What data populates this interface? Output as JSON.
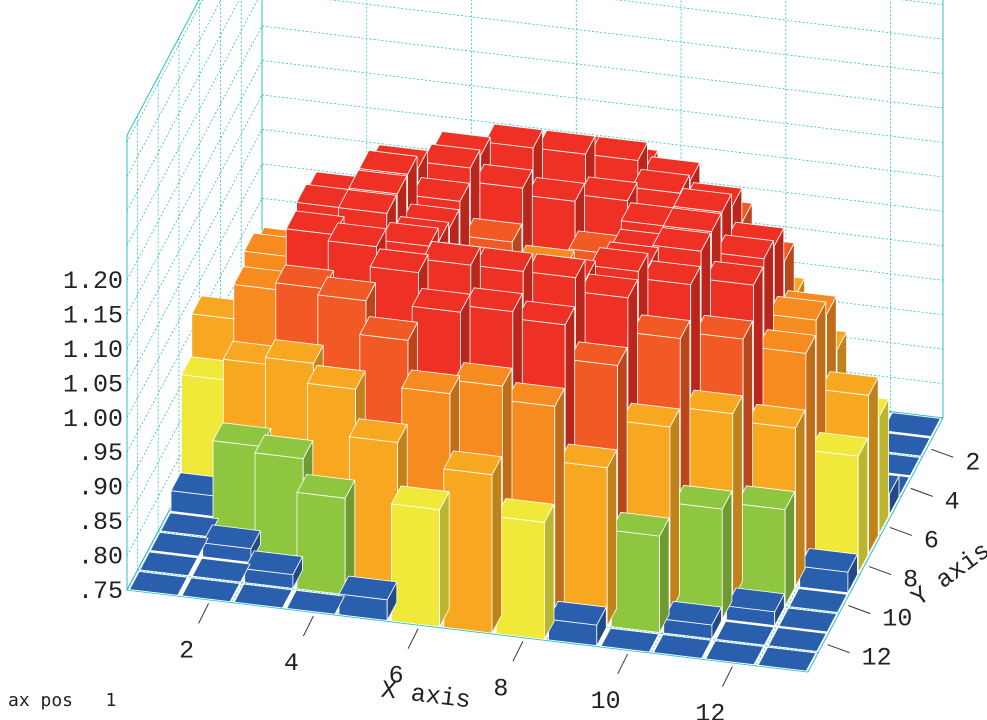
{
  "chart_data": {
    "type": "bar3d",
    "xlabel": "X axis",
    "ylabel": "Y axis",
    "x_ticks": [
      "2",
      "4",
      "6",
      "8",
      "10",
      "12"
    ],
    "y_ticks": [
      "2",
      "4",
      "6",
      "8",
      "10",
      "12"
    ],
    "z_ticks": [
      ".75",
      ".80",
      ".85",
      ".90",
      ".95",
      "1.00",
      "1.05",
      "1.10",
      "1.15",
      "1.20"
    ],
    "x_categories": [
      1,
      2,
      3,
      4,
      5,
      6,
      7,
      8,
      9,
      10,
      11,
      12,
      13
    ],
    "y_categories": [
      1,
      2,
      3,
      4,
      5,
      6,
      7,
      8,
      9,
      10,
      11,
      12,
      13
    ],
    "zlim": [
      0.75,
      1.2
    ],
    "color_scale": [
      "#2a5fad",
      "#64bc48",
      "#8ec63f",
      "#f0e93a",
      "#f7a820",
      "#f68b1f",
      "#f15a24",
      "#ee3124"
    ],
    "values": [
      [
        0.75,
        0.75,
        0.75,
        0.75,
        0.78,
        0.92,
        0.98,
        0.92,
        0.78,
        0.75,
        0.75,
        0.75,
        0.75
      ],
      [
        0.75,
        0.75,
        0.77,
        0.89,
        0.98,
        1.06,
        1.08,
        1.06,
        0.98,
        0.89,
        0.77,
        0.75,
        0.75
      ],
      [
        0.75,
        0.77,
        0.91,
        1.02,
        1.1,
        1.15,
        1.16,
        1.15,
        1.1,
        1.02,
        0.91,
        0.77,
        0.75
      ],
      [
        0.75,
        0.89,
        1.02,
        1.12,
        1.17,
        1.19,
        1.19,
        1.19,
        1.17,
        1.12,
        1.02,
        0.89,
        0.75
      ],
      [
        0.78,
        0.98,
        1.1,
        1.17,
        1.18,
        1.16,
        1.15,
        1.16,
        1.18,
        1.17,
        1.1,
        0.98,
        0.78
      ],
      [
        0.92,
        1.06,
        1.15,
        1.19,
        1.16,
        1.11,
        1.08,
        1.11,
        1.16,
        1.19,
        1.15,
        1.06,
        0.92
      ],
      [
        0.98,
        1.08,
        1.16,
        1.19,
        1.15,
        1.08,
        1.04,
        1.08,
        1.15,
        1.19,
        1.16,
        1.08,
        0.98
      ],
      [
        0.92,
        1.06,
        1.15,
        1.19,
        1.16,
        1.11,
        1.08,
        1.11,
        1.16,
        1.19,
        1.15,
        1.06,
        0.92
      ],
      [
        0.78,
        0.98,
        1.1,
        1.17,
        1.18,
        1.16,
        1.15,
        1.16,
        1.18,
        1.17,
        1.1,
        0.98,
        0.78
      ],
      [
        0.75,
        0.89,
        1.02,
        1.12,
        1.17,
        1.19,
        1.19,
        1.19,
        1.17,
        1.12,
        1.02,
        0.89,
        0.75
      ],
      [
        0.75,
        0.77,
        0.91,
        1.02,
        1.1,
        1.15,
        1.16,
        1.15,
        1.1,
        1.02,
        0.91,
        0.77,
        0.75
      ],
      [
        0.75,
        0.75,
        0.77,
        0.89,
        0.98,
        1.06,
        1.08,
        1.06,
        0.98,
        0.89,
        0.77,
        0.75,
        0.75
      ],
      [
        0.75,
        0.75,
        0.75,
        0.75,
        0.78,
        0.92,
        0.98,
        0.92,
        0.78,
        0.75,
        0.75,
        0.75,
        0.75
      ]
    ],
    "grid": true,
    "grid_color": "#2fc0c0"
  },
  "status": {
    "label": "ax pos",
    "value": "1"
  }
}
